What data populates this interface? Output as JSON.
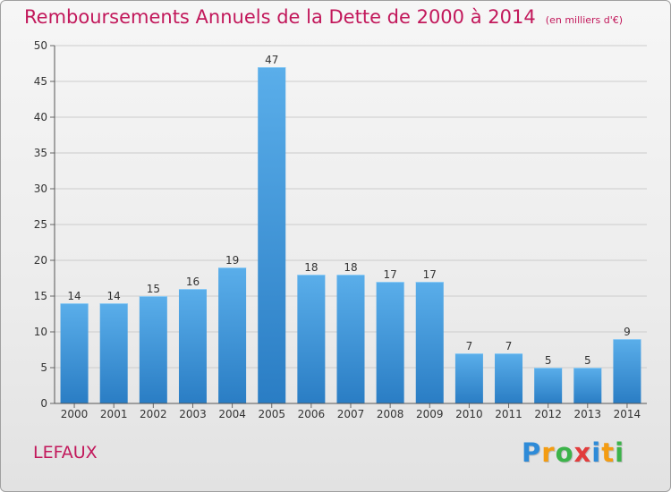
{
  "title": "Remboursements Annuels de la Dette de 2000 à 2014",
  "subtitle": "(en milliers d'€)",
  "commune": "LEFAUX",
  "brand": {
    "letters": [
      {
        "char": "P",
        "color": "#2e8bd8"
      },
      {
        "char": "r",
        "color": "#f39c12"
      },
      {
        "char": "o",
        "color": "#3cb34a"
      },
      {
        "char": "x",
        "color": "#e23c3c"
      },
      {
        "char": "i",
        "color": "#2e8bd8"
      },
      {
        "char": "t",
        "color": "#f39c12"
      },
      {
        "char": "i",
        "color": "#3cb34a"
      }
    ]
  },
  "colors": {
    "bar_top": "#5aaeea",
    "bar_bottom": "#2a7dc4",
    "grid": "#cccccc",
    "title": "#c2185b"
  },
  "chart_data": {
    "type": "bar",
    "title": "Remboursements Annuels de la Dette de 2000 à 2014",
    "subtitle": "(en milliers d'€)",
    "categories": [
      "2000",
      "2001",
      "2002",
      "2003",
      "2004",
      "2005",
      "2006",
      "2007",
      "2008",
      "2009",
      "2010",
      "2011",
      "2012",
      "2013",
      "2014"
    ],
    "values": [
      14,
      14,
      15,
      16,
      19,
      47,
      18,
      18,
      17,
      17,
      7,
      7,
      5,
      5,
      9
    ],
    "ylim": [
      0,
      50
    ],
    "yticks": [
      0,
      5,
      10,
      15,
      20,
      25,
      30,
      35,
      40,
      45,
      50
    ],
    "grid": true,
    "legend": "none",
    "xlabel": "",
    "ylabel": ""
  }
}
